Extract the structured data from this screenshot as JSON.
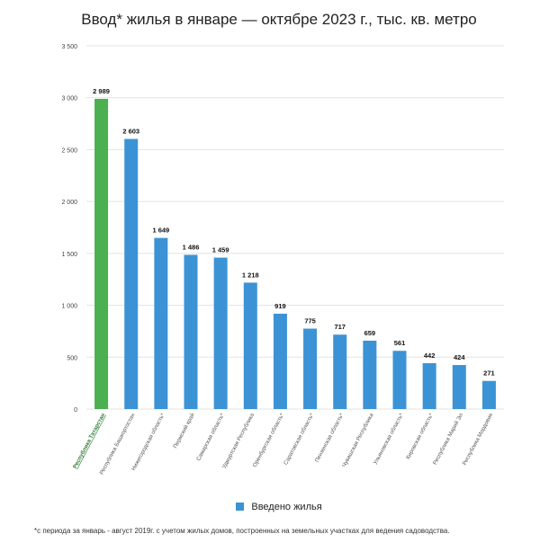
{
  "chart_data": {
    "type": "bar",
    "title": "Ввод* жилья в январе — октябре 2023 г., тыс. кв. метро",
    "categories": [
      "Республика Татарстан",
      "Республика Башкортостан",
      "Нижегородская область*",
      "Пермский край",
      "Самарская область*",
      "Удмуртская Республика",
      "Оренбургская область*",
      "Саратовская область*",
      "Пензенская область*",
      "Чувашская Республика",
      "Ульяновская область*",
      "Кировская область*",
      "Республика Марий Эл",
      "Республика Мордовия"
    ],
    "values": [
      2989,
      2603,
      1649,
      1486,
      1459,
      1218,
      919,
      775,
      717,
      659,
      561,
      442,
      424,
      271
    ],
    "value_labels": [
      "2 989",
      "2 603",
      "1 649",
      "1 486",
      "1 459",
      "1 218",
      "919",
      "775",
      "717",
      "659",
      "561",
      "442",
      "424",
      "271"
    ],
    "y_ticks": [
      0,
      500,
      1000,
      1500,
      2000,
      2500,
      3000,
      3500
    ],
    "y_tick_labels": [
      "0",
      "500",
      "1 000",
      "1 500",
      "2 000",
      "2 500",
      "3 000",
      "3 500"
    ],
    "ylim": [
      0,
      3500
    ],
    "series_name": "Введено жилья",
    "grid": true,
    "legend_position": "bottom",
    "highlight_index": 0,
    "colors": {
      "default": "#3b93d6",
      "highlight": "#4caf50",
      "grid": "#e3e3e3"
    }
  },
  "footnote": "*с периода за январь - август 2019г. с учетом жилых домов, построенных на земельных участках для ведения садоводства."
}
